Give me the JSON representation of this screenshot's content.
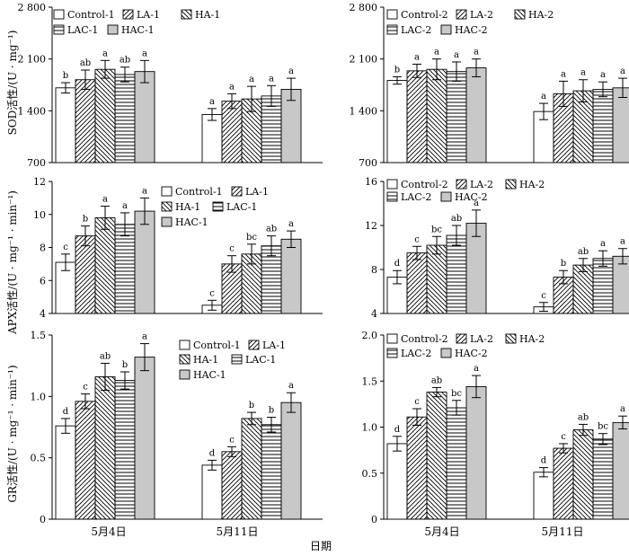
{
  "figure": {
    "xlabel": "日期",
    "dates": [
      "5月4日",
      "5月11日"
    ]
  },
  "treatments": {
    "1": [
      "Control-1",
      "LA-1",
      "HA-1",
      "LAC-1",
      "HAC-1"
    ],
    "2": [
      "Control-2",
      "LA-2",
      "HA-2",
      "LAC-2",
      "HAC-2"
    ]
  },
  "chart_data": [
    {
      "type": "bar",
      "id": "sod1",
      "group": "1",
      "ylabel": "SOD活性/(U · mg⁻¹)",
      "ylim": [
        700,
        2800
      ],
      "yticks": [
        700,
        1400,
        2100,
        2800
      ],
      "yticklabels": [
        "700",
        "1 400",
        "2 100",
        "2 800"
      ],
      "categories": [
        "5月4日",
        "5月11日"
      ],
      "series": [
        {
          "name": "Control-1",
          "values": [
            1710,
            1350
          ],
          "errors": [
            70,
            80
          ],
          "letters": [
            "b",
            "a"
          ]
        },
        {
          "name": "LA-1",
          "values": [
            1820,
            1530
          ],
          "errors": [
            130,
            100
          ],
          "letters": [
            "ab",
            "a"
          ]
        },
        {
          "name": "HA-1",
          "values": [
            1960,
            1560
          ],
          "errors": [
            120,
            170
          ],
          "letters": [
            "a",
            "a"
          ]
        },
        {
          "name": "LAC-1",
          "values": [
            1890,
            1600
          ],
          "errors": [
            100,
            140
          ],
          "letters": [
            "ab",
            "a"
          ]
        },
        {
          "name": "HAC-1",
          "values": [
            1930,
            1690
          ],
          "errors": [
            150,
            150
          ],
          "letters": [
            "a",
            "a"
          ]
        }
      ]
    },
    {
      "type": "bar",
      "id": "sod2",
      "group": "2",
      "ylabel": "",
      "ylim": [
        700,
        2800
      ],
      "yticks": [
        700,
        1400,
        2100,
        2800
      ],
      "yticklabels": [
        "700",
        "1 400",
        "2 100",
        "2 800"
      ],
      "categories": [
        "5月4日",
        "5月11日"
      ],
      "series": [
        {
          "name": "Control-2",
          "values": [
            1810,
            1390
          ],
          "errors": [
            50,
            110
          ],
          "letters": [
            "b",
            "a"
          ]
        },
        {
          "name": "LA-2",
          "values": [
            1940,
            1630
          ],
          "errors": [
            90,
            170
          ],
          "letters": [
            "a",
            "a"
          ]
        },
        {
          "name": "HA-2",
          "values": [
            1960,
            1670
          ],
          "errors": [
            140,
            150
          ],
          "letters": [
            "a",
            "a"
          ]
        },
        {
          "name": "LAC-2",
          "values": [
            1930,
            1690
          ],
          "errors": [
            130,
            100
          ],
          "letters": [
            "a",
            "a"
          ]
        },
        {
          "name": "HAC-2",
          "values": [
            1980,
            1710
          ],
          "errors": [
            120,
            130
          ],
          "letters": [
            "a",
            "a"
          ]
        }
      ]
    },
    {
      "type": "bar",
      "id": "apx1",
      "group": "1",
      "ylabel": "APX活性/(U · mg⁻¹ · min⁻¹)",
      "ylim": [
        4,
        12
      ],
      "yticks": [
        4,
        6,
        8,
        10,
        12
      ],
      "yticklabels": [
        "4",
        "6",
        "8",
        "10",
        "12"
      ],
      "categories": [
        "5月4日",
        "5月11日"
      ],
      "series": [
        {
          "name": "Control-1",
          "values": [
            7.1,
            4.5
          ],
          "errors": [
            0.5,
            0.3
          ],
          "letters": [
            "c",
            "c"
          ]
        },
        {
          "name": "LA-1",
          "values": [
            8.7,
            7.0
          ],
          "errors": [
            0.6,
            0.5
          ],
          "letters": [
            "b",
            "c"
          ]
        },
        {
          "name": "HA-1",
          "values": [
            9.8,
            7.6
          ],
          "errors": [
            0.7,
            0.6
          ],
          "letters": [
            "a",
            "bc"
          ]
        },
        {
          "name": "LAC-1",
          "values": [
            9.4,
            8.1
          ],
          "errors": [
            0.7,
            0.6
          ],
          "letters": [
            "a",
            "ab"
          ]
        },
        {
          "name": "HAC-1",
          "values": [
            10.2,
            8.5
          ],
          "errors": [
            0.8,
            0.5
          ],
          "letters": [
            "a",
            "a"
          ]
        }
      ]
    },
    {
      "type": "bar",
      "id": "apx2",
      "group": "2",
      "ylabel": "",
      "ylim": [
        4,
        16
      ],
      "yticks": [
        4,
        8,
        12,
        16
      ],
      "yticklabels": [
        "4",
        "8",
        "12",
        "16"
      ],
      "categories": [
        "5月4日",
        "5月11日"
      ],
      "series": [
        {
          "name": "Control-2",
          "values": [
            7.3,
            4.6
          ],
          "errors": [
            0.6,
            0.4
          ],
          "letters": [
            "d",
            "c"
          ]
        },
        {
          "name": "LA-2",
          "values": [
            9.5,
            7.3
          ],
          "errors": [
            0.6,
            0.6
          ],
          "letters": [
            "c",
            "b"
          ]
        },
        {
          "name": "HA-2",
          "values": [
            10.2,
            8.4
          ],
          "errors": [
            0.8,
            0.6
          ],
          "letters": [
            "bc",
            "ab"
          ]
        },
        {
          "name": "LAC-2",
          "values": [
            11.1,
            9.0
          ],
          "errors": [
            0.9,
            0.7
          ],
          "letters": [
            "ab",
            "a"
          ]
        },
        {
          "name": "HAC-2",
          "values": [
            12.2,
            9.2
          ],
          "errors": [
            1.2,
            0.7
          ],
          "letters": [
            "a",
            "a"
          ]
        }
      ]
    },
    {
      "type": "bar",
      "id": "gr1",
      "group": "1",
      "ylabel": "GR活性/(U · mg⁻¹ · min⁻¹)",
      "ylim": [
        0,
        1.5
      ],
      "yticks": [
        0,
        0.5,
        1.0,
        1.5
      ],
      "yticklabels": [
        "0",
        "0.5",
        "1.0",
        "1.5"
      ],
      "categories": [
        "5月4日",
        "5月11日"
      ],
      "series": [
        {
          "name": "Control-1",
          "values": [
            0.76,
            0.44
          ],
          "errors": [
            0.06,
            0.04
          ],
          "letters": [
            "d",
            "d"
          ]
        },
        {
          "name": "LA-1",
          "values": [
            0.96,
            0.55
          ],
          "errors": [
            0.06,
            0.04
          ],
          "letters": [
            "c",
            "c"
          ]
        },
        {
          "name": "HA-1",
          "values": [
            1.16,
            0.82
          ],
          "errors": [
            0.11,
            0.05
          ],
          "letters": [
            "ab",
            "b"
          ]
        },
        {
          "name": "LAC-1",
          "values": [
            1.13,
            0.77
          ],
          "errors": [
            0.07,
            0.06
          ],
          "letters": [
            "b",
            "b"
          ]
        },
        {
          "name": "HAC-1",
          "values": [
            1.32,
            0.95
          ],
          "errors": [
            0.11,
            0.08
          ],
          "letters": [
            "a",
            "a"
          ]
        }
      ]
    },
    {
      "type": "bar",
      "id": "gr2",
      "group": "2",
      "ylabel": "",
      "ylim": [
        0,
        2.0
      ],
      "yticks": [
        0,
        0.5,
        1.0,
        1.5,
        2.0
      ],
      "yticklabels": [
        "0",
        "0.5",
        "1.0",
        "1.5",
        "2.0"
      ],
      "categories": [
        "5月4日",
        "5月11日"
      ],
      "series": [
        {
          "name": "Control-2",
          "values": [
            0.82,
            0.51
          ],
          "errors": [
            0.08,
            0.05
          ],
          "letters": [
            "d",
            "d"
          ]
        },
        {
          "name": "LA-2",
          "values": [
            1.11,
            0.77
          ],
          "errors": [
            0.09,
            0.05
          ],
          "letters": [
            "c",
            "c"
          ]
        },
        {
          "name": "HA-2",
          "values": [
            1.38,
            0.97
          ],
          "errors": [
            0.05,
            0.06
          ],
          "letters": [
            "ab",
            "ab"
          ]
        },
        {
          "name": "LAC-2",
          "values": [
            1.21,
            0.87
          ],
          "errors": [
            0.08,
            0.06
          ],
          "letters": [
            "bc",
            "bc"
          ]
        },
        {
          "name": "HAC-2",
          "values": [
            1.44,
            1.05
          ],
          "errors": [
            0.12,
            0.07
          ],
          "letters": [
            "a",
            "a"
          ]
        }
      ]
    }
  ]
}
